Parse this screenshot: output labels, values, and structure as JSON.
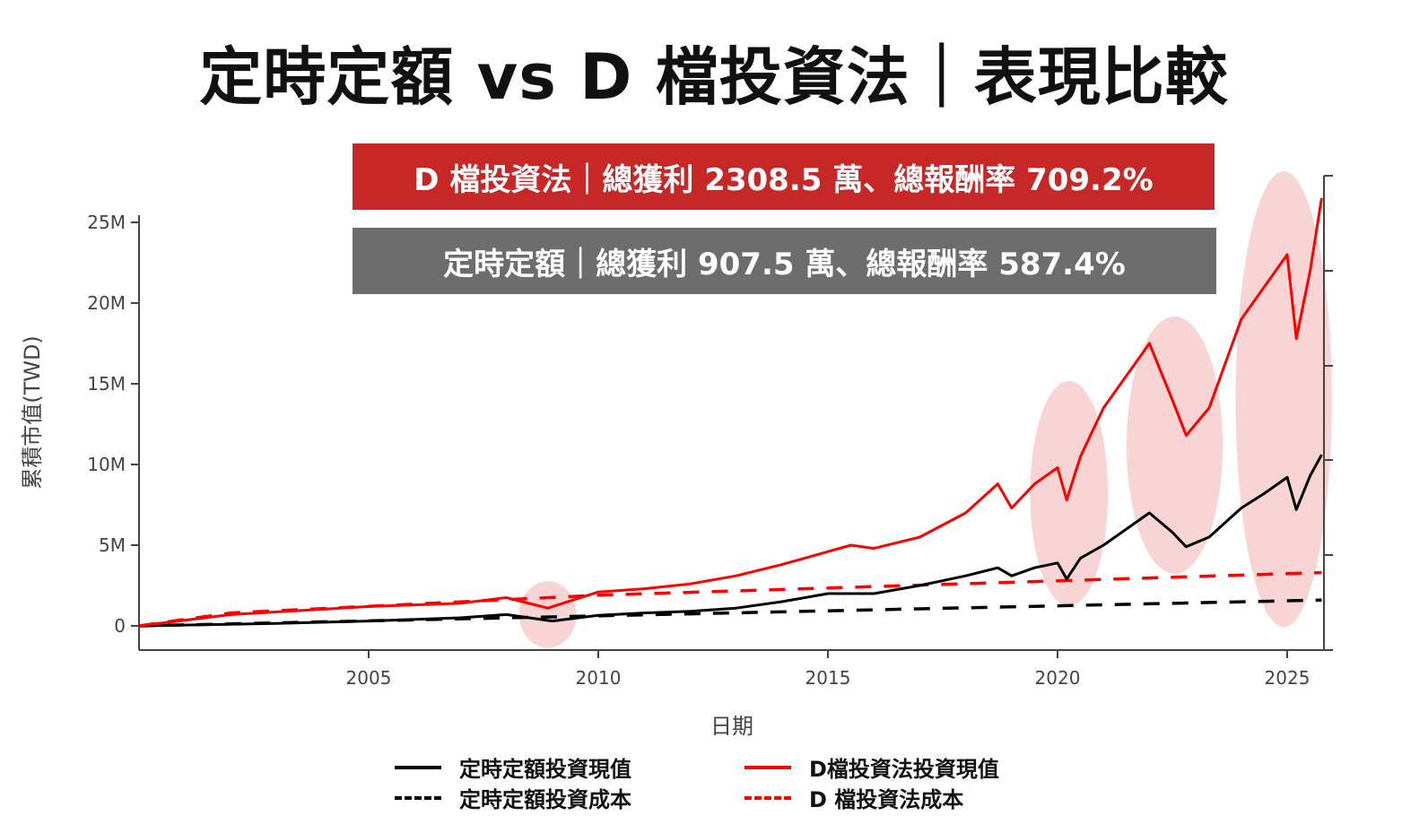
{
  "title": "定時定額 vs D 檔投資法｜表現比較",
  "banners": {
    "d": "D 檔投資法｜總獲利 2308.5 萬、總報酬率 709.2%",
    "dca": "定時定額｜總獲利 907.5 萬、總報酬率 587.4%"
  },
  "colors": {
    "d": "#ff0000",
    "dca": "#000000",
    "d_banner": "#c62828",
    "dca_banner": "#6d6d6d",
    "highlight": "#f7c6c6"
  },
  "chart_data": {
    "type": "line",
    "title": "",
    "xlabel": "日期",
    "ylabel": "累積市值(TWD)",
    "xlim": [
      2000,
      2025.75
    ],
    "ylim": [
      -1.5,
      25
    ],
    "xticks": [
      "2005",
      "2010",
      "2015",
      "2020",
      "2025"
    ],
    "yticks": [
      "0",
      "5M",
      "10M",
      "15M",
      "20M",
      "25M"
    ],
    "grid": false,
    "legend": "bottom",
    "highlighted_periods": [
      [
        2008.5,
        2009.3
      ],
      [
        2019.5,
        2021
      ],
      [
        2021.6,
        2023.5
      ],
      [
        2024.1,
        2026
      ]
    ],
    "series": [
      {
        "name": "定時定額投資現值",
        "style": "solid",
        "color": "#000000",
        "x": [
          2000,
          2003,
          2005,
          2007,
          2008,
          2009,
          2010,
          2011,
          2012,
          2013,
          2014,
          2015,
          2016,
          2017,
          2018,
          2018.7,
          2019,
          2019.5,
          2020,
          2020.2,
          2020.5,
          2021,
          2021.5,
          2022,
          2022.5,
          2022.8,
          2023.3,
          2024,
          2024.5,
          2025,
          2025.2,
          2025.5,
          2025.75
        ],
        "y": [
          0,
          0.15,
          0.3,
          0.5,
          0.7,
          0.3,
          0.65,
          0.8,
          0.9,
          1.1,
          1.5,
          2.0,
          2.0,
          2.5,
          3.1,
          3.6,
          3.1,
          3.6,
          3.9,
          2.9,
          4.2,
          5.0,
          6.0,
          7.0,
          5.8,
          4.9,
          5.5,
          7.3,
          8.2,
          9.2,
          7.2,
          9.3,
          10.6
        ]
      },
      {
        "name": "定時定額投資成本",
        "style": "dashed",
        "color": "#000000",
        "x": [
          2000,
          2025.75
        ],
        "y": [
          0,
          1.6
        ]
      },
      {
        "name": "D檔投資法投資現值",
        "style": "solid",
        "color": "#ff0000",
        "x": [
          2000,
          2002,
          2005,
          2007,
          2008,
          2008.9,
          2010,
          2011,
          2012,
          2013,
          2014,
          2015,
          2015.5,
          2016,
          2017,
          2018,
          2018.7,
          2019,
          2019.5,
          2020,
          2020.2,
          2020.5,
          2021,
          2021.5,
          2022,
          2022.5,
          2022.8,
          2023.3,
          2024,
          2024.5,
          2025,
          2025.2,
          2025.5,
          2025.75
        ],
        "y": [
          0,
          0.7,
          1.2,
          1.4,
          1.75,
          1.1,
          2.1,
          2.3,
          2.6,
          3.1,
          3.8,
          4.6,
          5.0,
          4.8,
          5.5,
          7.0,
          8.8,
          7.3,
          8.8,
          9.8,
          7.8,
          10.5,
          13.5,
          15.5,
          17.5,
          14.0,
          11.8,
          13.5,
          19.0,
          21.0,
          23.0,
          17.8,
          22.0,
          26.5
        ]
      },
      {
        "name": "D 檔投資法成本",
        "style": "dashed",
        "color": "#ff0000",
        "x": [
          2000,
          2002,
          2010,
          2025.75
        ],
        "y": [
          0,
          0.8,
          1.9,
          3.3
        ]
      }
    ]
  }
}
